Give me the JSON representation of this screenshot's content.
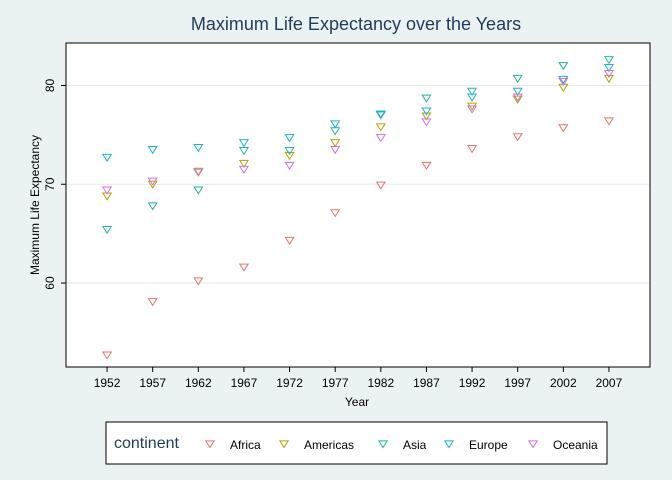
{
  "chart_data": {
    "type": "scatter",
    "title": "Maximum Life Expectancy over the Years",
    "xlabel": "Year",
    "ylabel": "Maximum Life Expectancy",
    "x": [
      1952,
      1957,
      1962,
      1967,
      1972,
      1977,
      1982,
      1987,
      1992,
      1997,
      2002,
      2007
    ],
    "xlim": [
      1947.5,
      2011.5
    ],
    "ylim": [
      51.5,
      84.3
    ],
    "yticks": [
      60,
      70,
      80
    ],
    "grid": true,
    "marker": "triangle-down",
    "legend": {
      "title": "continent",
      "position": "bottom"
    },
    "series": [
      {
        "name": "Africa",
        "color": "#e8736c",
        "values": [
          52.7,
          58.1,
          60.2,
          61.6,
          64.3,
          67.1,
          69.9,
          71.9,
          73.6,
          74.8,
          75.7,
          76.4
        ]
      },
      {
        "name": "Americas",
        "color": "#b5a300",
        "values": [
          68.8,
          70.0,
          71.3,
          72.1,
          72.9,
          74.2,
          75.8,
          76.9,
          77.9,
          78.6,
          79.8,
          80.7
        ]
      },
      {
        "name": "Asia",
        "color": "#1fb89a",
        "values": [
          65.4,
          67.8,
          69.4,
          73.4,
          73.4,
          75.4,
          77.1,
          78.7,
          79.4,
          80.7,
          82.0,
          82.6
        ]
      },
      {
        "name": "Europe",
        "color": "#1ab0d8",
        "values": [
          72.7,
          73.5,
          73.7,
          74.2,
          74.7,
          76.1,
          77.0,
          77.4,
          78.8,
          79.4,
          80.6,
          81.8
        ]
      },
      {
        "name": "Oceania",
        "color": "#d270e0",
        "values": [
          69.4,
          70.3,
          71.2,
          71.5,
          71.9,
          73.5,
          74.7,
          76.3,
          77.6,
          78.8,
          80.4,
          81.2
        ]
      }
    ]
  }
}
